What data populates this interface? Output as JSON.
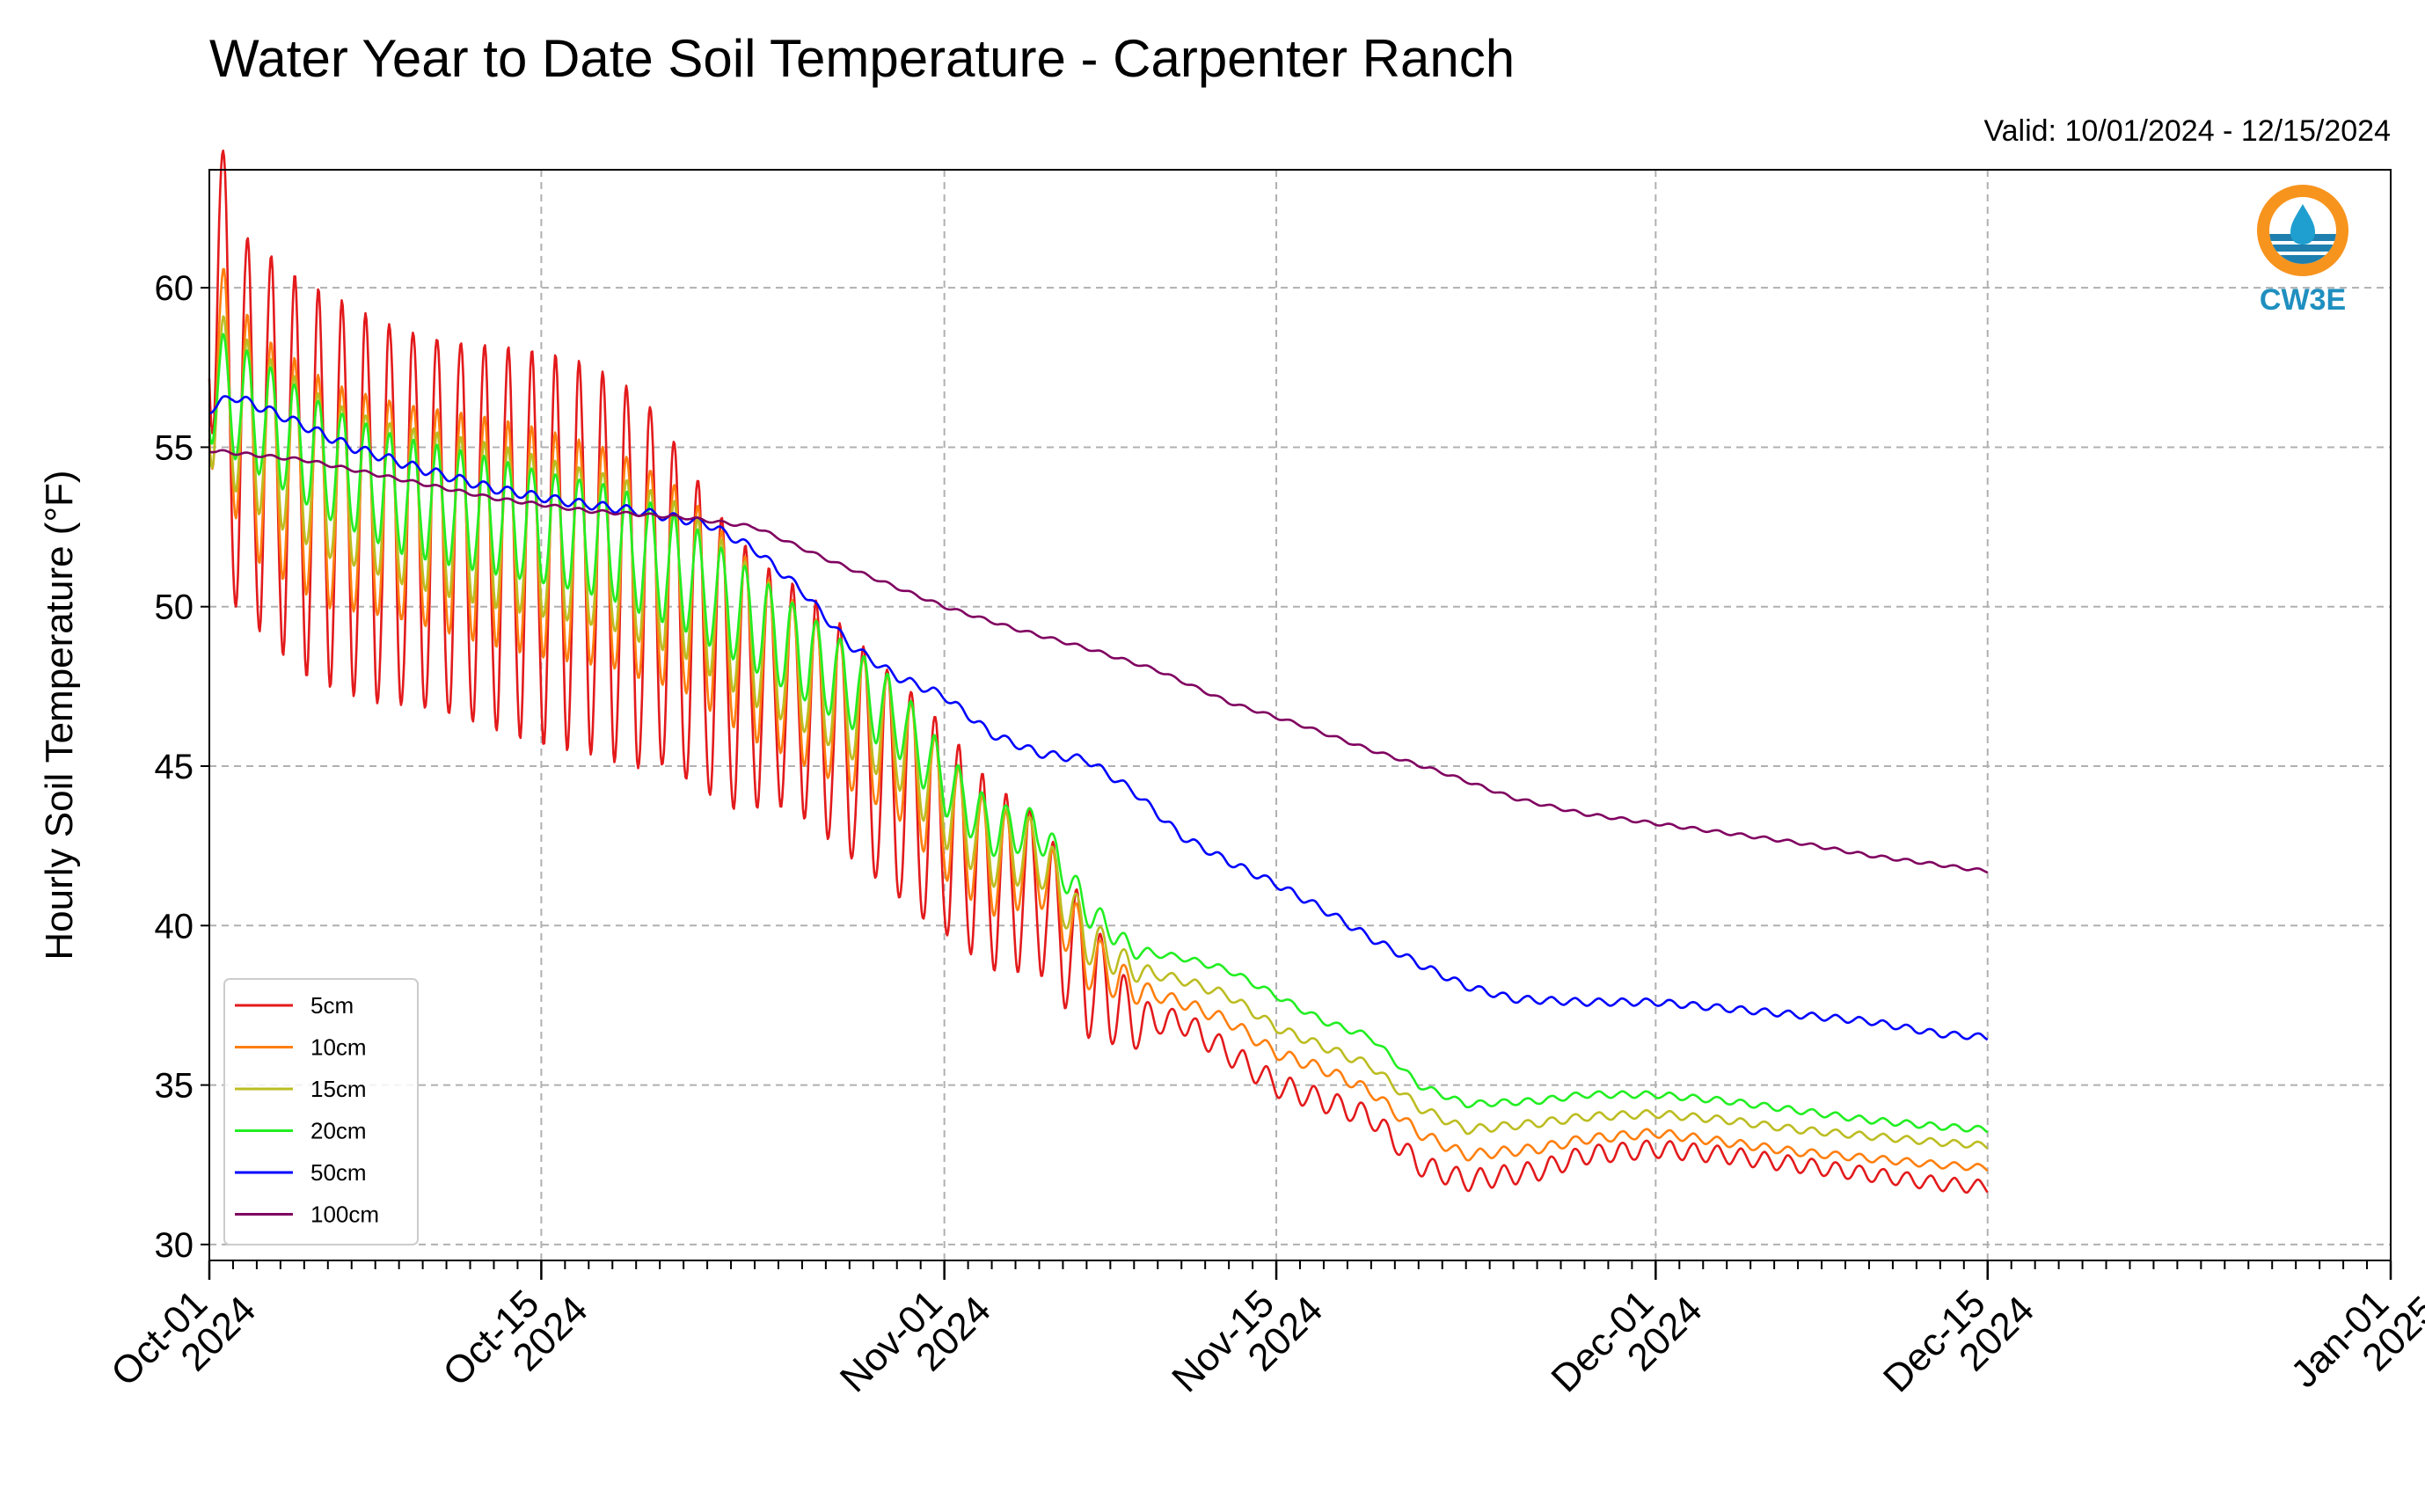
{
  "title": "Water Year to Date Soil Temperature - Carpenter Ranch",
  "valid": "Valid: 10/01/2024 - 12/15/2024",
  "logo_text": "CW3E",
  "chart_data": {
    "type": "line",
    "ylabel": "Hourly Soil Temperature (°F)",
    "xlabel": "",
    "ylim": [
      29.5,
      63.7
    ],
    "xlim": [
      "2024-10-01",
      "2025-01-01"
    ],
    "grid": true,
    "legend_position": "lower-left",
    "yticks": [
      30,
      35,
      40,
      45,
      50,
      55,
      60
    ],
    "xticks": [
      {
        "date": "2024-10-01",
        "line1": "Oct-01",
        "line2": "2024"
      },
      {
        "date": "2024-10-15",
        "line1": "Oct-15",
        "line2": "2024"
      },
      {
        "date": "2024-11-01",
        "line1": "Nov-01",
        "line2": "2024"
      },
      {
        "date": "2024-11-15",
        "line1": "Nov-15",
        "line2": "2024"
      },
      {
        "date": "2024-12-01",
        "line1": "Dec-01",
        "line2": "2024"
      },
      {
        "date": "2024-12-15",
        "line1": "Dec-15",
        "line2": "2024"
      },
      {
        "date": "2025-01-01",
        "line1": "Jan-01",
        "line2": "2025"
      }
    ],
    "series": [
      {
        "name": "5cm",
        "color": "#e31a1c",
        "points": [
          [
            "2024-10-01",
            62
          ],
          [
            "2024-10-02",
            56
          ],
          [
            "2024-10-05",
            54
          ],
          [
            "2024-10-08",
            53
          ],
          [
            "2024-10-11",
            52.5
          ],
          [
            "2024-10-14",
            52
          ],
          [
            "2024-10-17",
            51.5
          ],
          [
            "2024-10-20",
            50.5
          ],
          [
            "2024-10-23",
            48
          ],
          [
            "2024-10-26",
            47
          ],
          [
            "2024-10-29",
            45
          ],
          [
            "2024-11-01",
            43
          ],
          [
            "2024-11-03",
            41.5
          ],
          [
            "2024-11-05",
            41
          ],
          [
            "2024-11-07",
            38.5
          ],
          [
            "2024-11-09",
            37
          ],
          [
            "2024-11-11",
            37
          ],
          [
            "2024-11-13",
            36
          ],
          [
            "2024-11-15",
            35
          ],
          [
            "2024-11-17",
            34.5
          ],
          [
            "2024-11-19",
            34
          ],
          [
            "2024-11-21",
            32.5
          ],
          [
            "2024-11-23",
            32
          ],
          [
            "2024-11-26",
            32.3
          ],
          [
            "2024-11-28",
            32.8
          ],
          [
            "2024-12-01",
            33
          ],
          [
            "2024-12-04",
            32.8
          ],
          [
            "2024-12-07",
            32.5
          ],
          [
            "2024-12-10",
            32.2
          ],
          [
            "2024-12-13",
            31.9
          ],
          [
            "2024-12-15",
            31.8
          ]
        ],
        "diurnal_amplitude": [
          [
            0,
            6
          ],
          [
            18,
            6
          ],
          [
            24,
            3.5
          ],
          [
            30,
            3.5
          ],
          [
            37,
            2
          ],
          [
            40,
            0.4
          ],
          [
            76,
            0.2
          ]
        ]
      },
      {
        "name": "10cm",
        "color": "#ff7f0e",
        "points": [
          [
            "2024-10-01",
            58
          ],
          [
            "2024-10-03",
            55
          ],
          [
            "2024-10-06",
            53.5
          ],
          [
            "2024-10-09",
            53
          ],
          [
            "2024-10-12",
            52.5
          ],
          [
            "2024-10-15",
            52
          ],
          [
            "2024-10-18",
            51.5
          ],
          [
            "2024-10-21",
            50.5
          ],
          [
            "2024-10-24",
            48.5
          ],
          [
            "2024-10-27",
            47
          ],
          [
            "2024-10-30",
            45.5
          ],
          [
            "2024-11-01",
            43.5
          ],
          [
            "2024-11-03",
            42
          ],
          [
            "2024-11-05",
            42
          ],
          [
            "2024-11-07",
            39
          ],
          [
            "2024-11-09",
            38
          ],
          [
            "2024-11-11",
            37.6
          ],
          [
            "2024-11-13",
            37
          ],
          [
            "2024-11-15",
            36
          ],
          [
            "2024-11-17",
            35.5
          ],
          [
            "2024-11-19",
            34.8
          ],
          [
            "2024-11-21",
            33.5
          ],
          [
            "2024-11-23",
            32.8
          ],
          [
            "2024-11-26",
            33
          ],
          [
            "2024-11-28",
            33.3
          ],
          [
            "2024-12-01",
            33.5
          ],
          [
            "2024-12-04",
            33.2
          ],
          [
            "2024-12-07",
            32.9
          ],
          [
            "2024-12-10",
            32.7
          ],
          [
            "2024-12-13",
            32.5
          ],
          [
            "2024-12-15",
            32.4
          ]
        ],
        "diurnal_amplitude": [
          [
            0,
            3.5
          ],
          [
            18,
            3.5
          ],
          [
            24,
            2.5
          ],
          [
            31,
            2
          ],
          [
            37,
            1
          ],
          [
            40,
            0.2
          ],
          [
            76,
            0.1
          ]
        ]
      },
      {
        "name": "15cm",
        "color": "#bcbd22",
        "points": [
          [
            "2024-10-01",
            57
          ],
          [
            "2024-10-03",
            55.5
          ],
          [
            "2024-10-06",
            54
          ],
          [
            "2024-10-09",
            53.2
          ],
          [
            "2024-10-12",
            52.7
          ],
          [
            "2024-10-15",
            52.2
          ],
          [
            "2024-10-18",
            51.7
          ],
          [
            "2024-10-21",
            50.8
          ],
          [
            "2024-10-24",
            49
          ],
          [
            "2024-10-27",
            47.5
          ],
          [
            "2024-10-30",
            46
          ],
          [
            "2024-11-01",
            44
          ],
          [
            "2024-11-03",
            42.5
          ],
          [
            "2024-11-05",
            42.3
          ],
          [
            "2024-11-07",
            39.6
          ],
          [
            "2024-11-09",
            38.6
          ],
          [
            "2024-11-11",
            38.3
          ],
          [
            "2024-11-13",
            37.8
          ],
          [
            "2024-11-15",
            36.8
          ],
          [
            "2024-11-17",
            36.2
          ],
          [
            "2024-11-19",
            35.6
          ],
          [
            "2024-11-21",
            34.3
          ],
          [
            "2024-11-23",
            33.6
          ],
          [
            "2024-11-26",
            33.8
          ],
          [
            "2024-11-28",
            34
          ],
          [
            "2024-12-01",
            34.1
          ],
          [
            "2024-12-04",
            33.9
          ],
          [
            "2024-12-07",
            33.6
          ],
          [
            "2024-12-10",
            33.4
          ],
          [
            "2024-12-13",
            33.2
          ],
          [
            "2024-12-15",
            33.1
          ]
        ],
        "diurnal_amplitude": [
          [
            0,
            2.5
          ],
          [
            18,
            2.5
          ],
          [
            24,
            2
          ],
          [
            31,
            1.5
          ],
          [
            37,
            0.8
          ],
          [
            40,
            0.15
          ],
          [
            76,
            0.1
          ]
        ]
      },
      {
        "name": "20cm",
        "color": "#22ee22",
        "points": [
          [
            "2024-10-01",
            57
          ],
          [
            "2024-10-03",
            56
          ],
          [
            "2024-10-06",
            54.5
          ],
          [
            "2024-10-09",
            53.5
          ],
          [
            "2024-10-12",
            53
          ],
          [
            "2024-10-15",
            52.5
          ],
          [
            "2024-10-18",
            52
          ],
          [
            "2024-10-21",
            51
          ],
          [
            "2024-10-24",
            49.5
          ],
          [
            "2024-10-27",
            48
          ],
          [
            "2024-10-30",
            46.5
          ],
          [
            "2024-11-01",
            44.5
          ],
          [
            "2024-11-03",
            43
          ],
          [
            "2024-11-05",
            43
          ],
          [
            "2024-11-07",
            40.5
          ],
          [
            "2024-11-09",
            39.2
          ],
          [
            "2024-11-11",
            39
          ],
          [
            "2024-11-13",
            38.6
          ],
          [
            "2024-11-15",
            37.8
          ],
          [
            "2024-11-17",
            37
          ],
          [
            "2024-11-19",
            36.5
          ],
          [
            "2024-11-21",
            35
          ],
          [
            "2024-11-23",
            34.4
          ],
          [
            "2024-11-26",
            34.5
          ],
          [
            "2024-11-28",
            34.7
          ],
          [
            "2024-12-01",
            34.7
          ],
          [
            "2024-12-04",
            34.5
          ],
          [
            "2024-12-07",
            34.2
          ],
          [
            "2024-12-10",
            33.9
          ],
          [
            "2024-12-13",
            33.7
          ],
          [
            "2024-12-15",
            33.6
          ]
        ],
        "diurnal_amplitude": [
          [
            0,
            1.8
          ],
          [
            18,
            1.8
          ],
          [
            24,
            1.5
          ],
          [
            31,
            1
          ],
          [
            37,
            0.5
          ],
          [
            40,
            0.1
          ],
          [
            76,
            0.1
          ]
        ]
      },
      {
        "name": "50cm",
        "color": "#0000ff",
        "points": [
          [
            "2024-10-01",
            56.2
          ],
          [
            "2024-10-02",
            56.6
          ],
          [
            "2024-10-04",
            56
          ],
          [
            "2024-10-07",
            55
          ],
          [
            "2024-10-10",
            54.3
          ],
          [
            "2024-10-13",
            53.7
          ],
          [
            "2024-10-16",
            53.3
          ],
          [
            "2024-10-19",
            53
          ],
          [
            "2024-10-22",
            52.6
          ],
          [
            "2024-10-24",
            51.8
          ],
          [
            "2024-10-26",
            50.5
          ],
          [
            "2024-10-28",
            48.8
          ],
          [
            "2024-10-30",
            47.8
          ],
          [
            "2024-11-01",
            47.2
          ],
          [
            "2024-11-03",
            46
          ],
          [
            "2024-11-05",
            45.4
          ],
          [
            "2024-11-07",
            45.2
          ],
          [
            "2024-11-09",
            44.2
          ],
          [
            "2024-11-11",
            42.8
          ],
          [
            "2024-11-13",
            42
          ],
          [
            "2024-11-15",
            41.3
          ],
          [
            "2024-11-17",
            40.5
          ],
          [
            "2024-11-19",
            39.6
          ],
          [
            "2024-11-21",
            38.8
          ],
          [
            "2024-11-23",
            38.1
          ],
          [
            "2024-11-25",
            37.7
          ],
          [
            "2024-11-28",
            37.6
          ],
          [
            "2024-12-01",
            37.6
          ],
          [
            "2024-12-04",
            37.4
          ],
          [
            "2024-12-07",
            37.2
          ],
          [
            "2024-12-10",
            37
          ],
          [
            "2024-12-13",
            36.6
          ],
          [
            "2024-12-15",
            36.5
          ]
        ],
        "diurnal_amplitude": [
          [
            0,
            0.15
          ],
          [
            76,
            0.1
          ]
        ]
      },
      {
        "name": "100cm",
        "color": "#800060",
        "points": [
          [
            "2024-10-01",
            54.9
          ],
          [
            "2024-10-05",
            54.6
          ],
          [
            "2024-10-09",
            54
          ],
          [
            "2024-10-13",
            53.4
          ],
          [
            "2024-10-17",
            53
          ],
          [
            "2024-10-21",
            52.8
          ],
          [
            "2024-10-24",
            52.5
          ],
          [
            "2024-10-27",
            51.5
          ],
          [
            "2024-10-30",
            50.6
          ],
          [
            "2024-11-01",
            50
          ],
          [
            "2024-11-04",
            49.3
          ],
          [
            "2024-11-07",
            48.7
          ],
          [
            "2024-11-10",
            48
          ],
          [
            "2024-11-13",
            47
          ],
          [
            "2024-11-16",
            46.3
          ],
          [
            "2024-11-19",
            45.5
          ],
          [
            "2024-11-22",
            44.8
          ],
          [
            "2024-11-25",
            44
          ],
          [
            "2024-11-28",
            43.5
          ],
          [
            "2024-12-01",
            43.2
          ],
          [
            "2024-12-04",
            42.9
          ],
          [
            "2024-12-07",
            42.6
          ],
          [
            "2024-12-10",
            42.2
          ],
          [
            "2024-12-13",
            41.9
          ],
          [
            "2024-12-15",
            41.7
          ]
        ],
        "diurnal_amplitude": [
          [
            0,
            0.05
          ],
          [
            76,
            0.05
          ]
        ]
      }
    ]
  }
}
